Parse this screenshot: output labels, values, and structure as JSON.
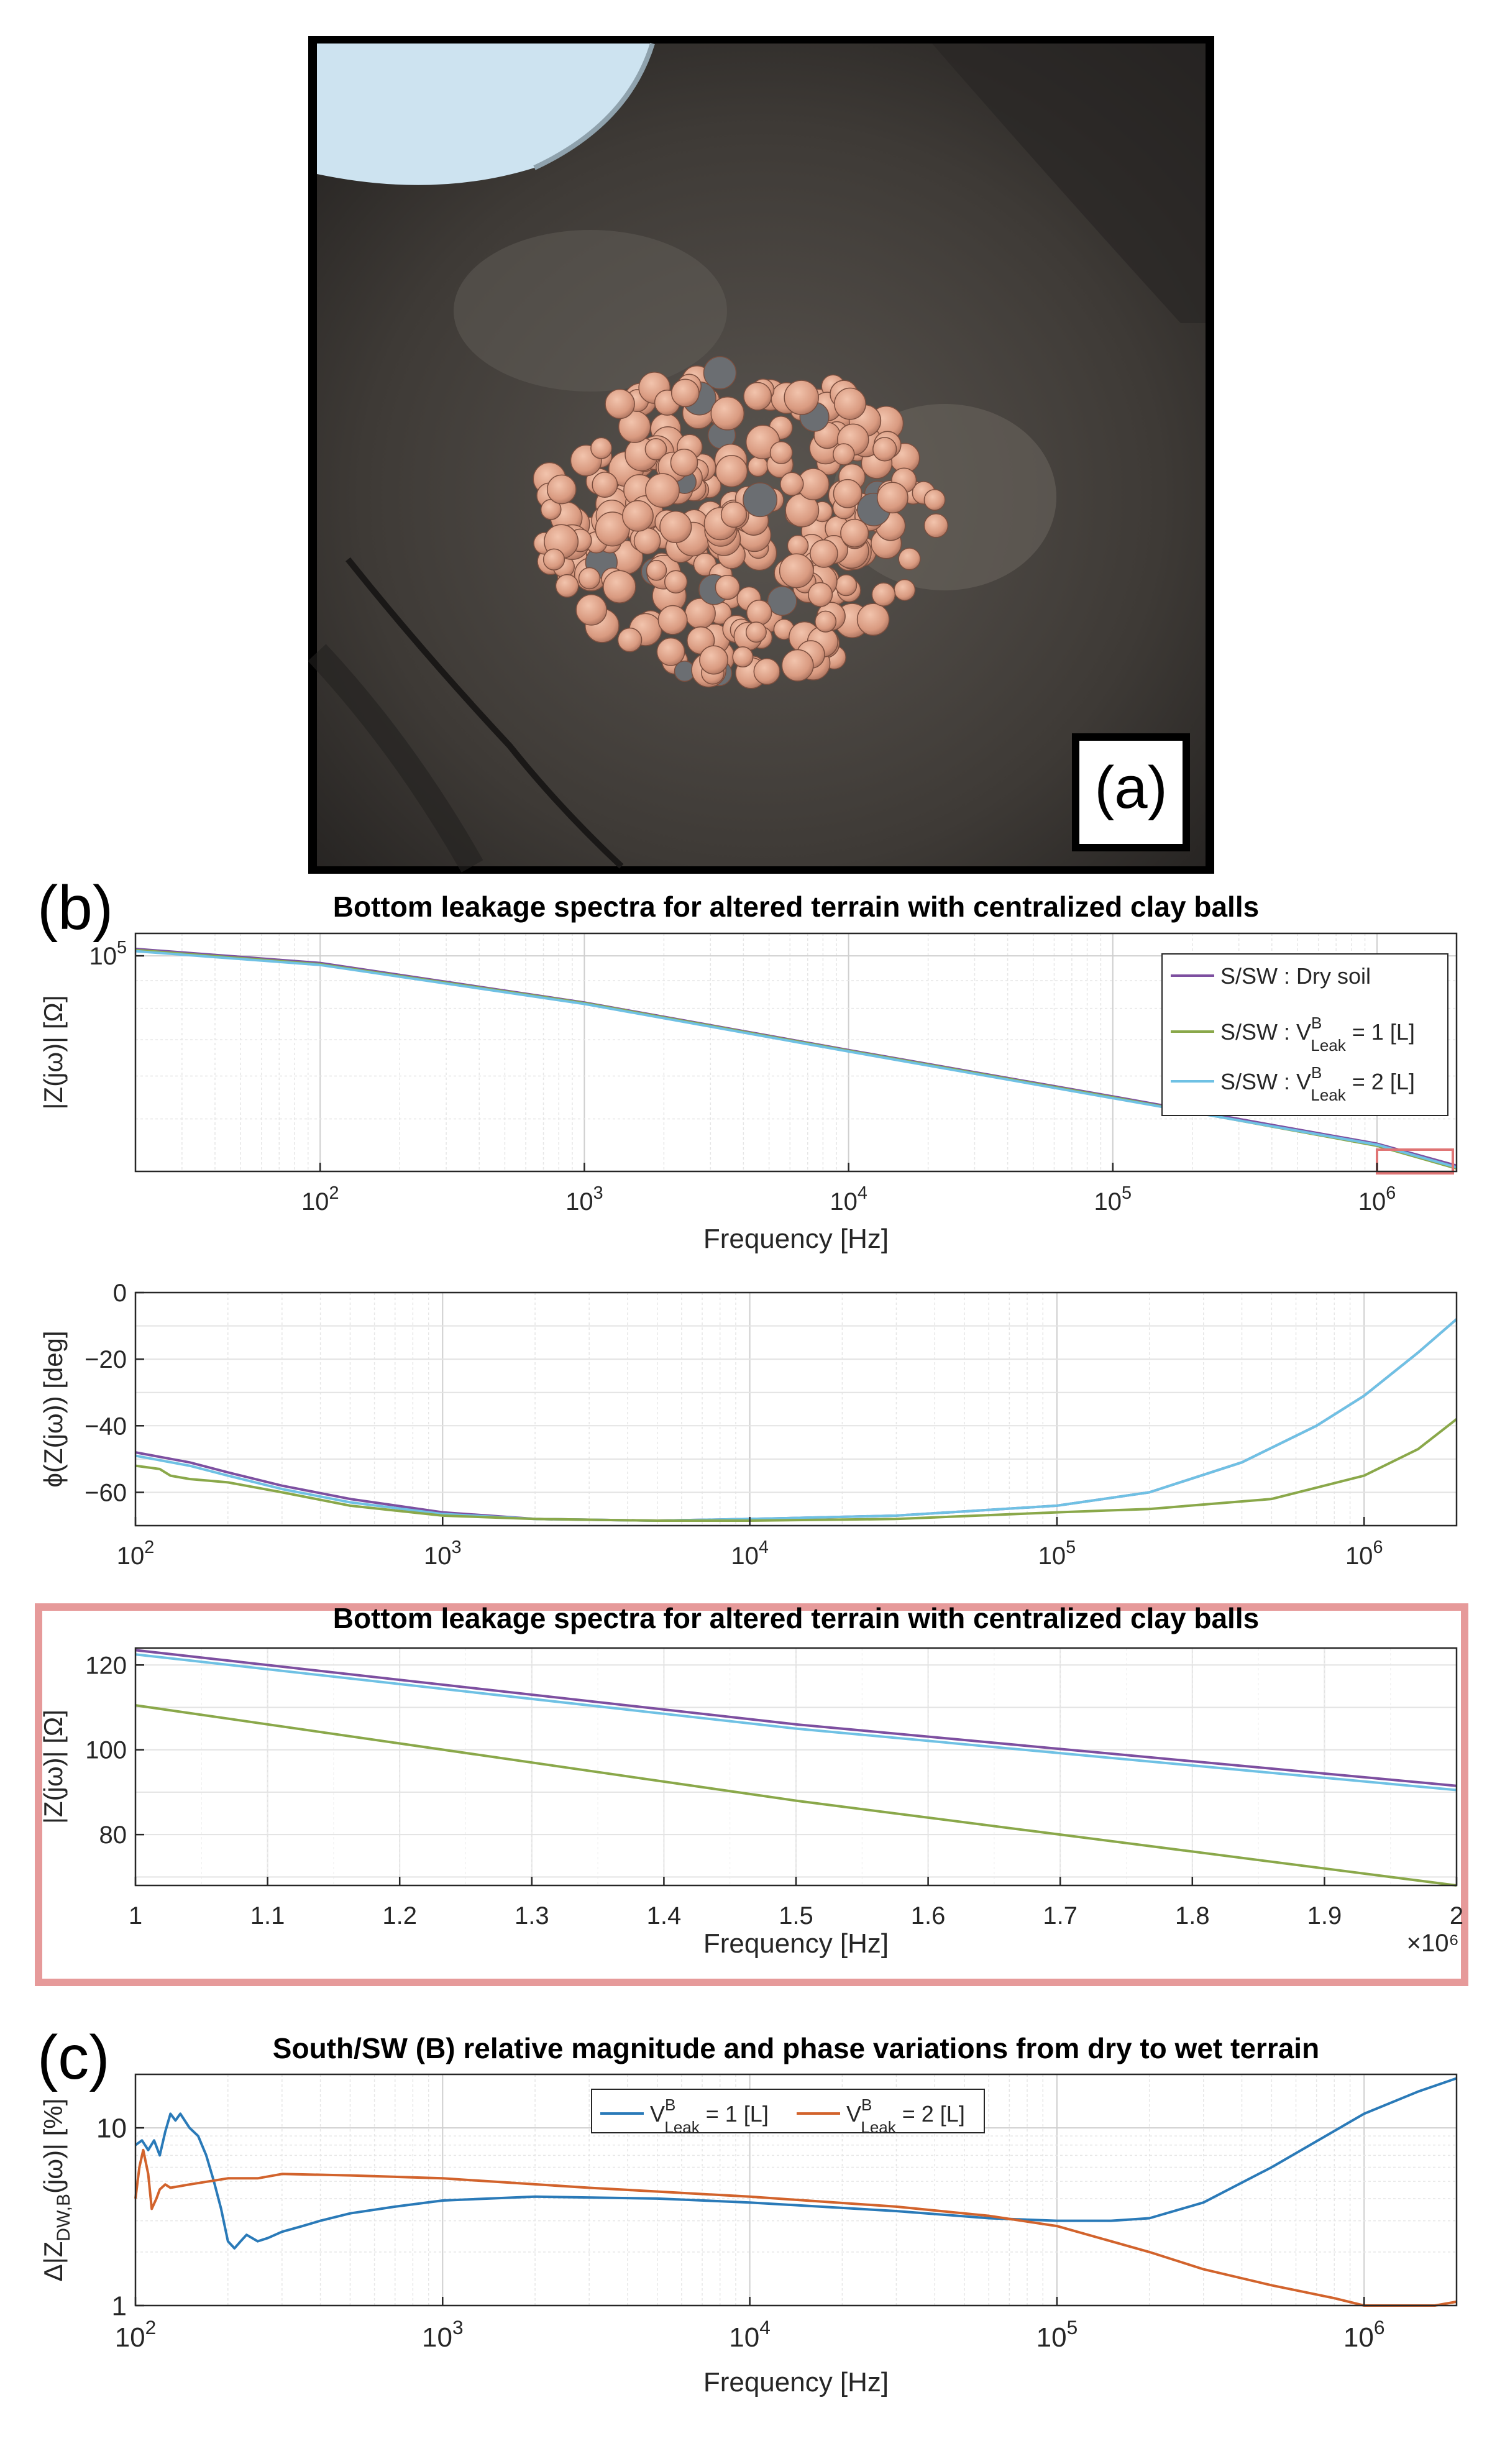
{
  "panel_labels": {
    "a": "(a)",
    "b": "(b)",
    "c": "(c)"
  },
  "photo": {
    "alt": "Cluster of orange clay balls in dark soil"
  },
  "chart_data": [
    {
      "id": "b1",
      "type": "line",
      "title": "Bottom leakage spectra for altered terrain with centralized clay balls",
      "xlabel": "Frequency [Hz]",
      "ylabel": "|Z(jω)| [Ω]",
      "xscale": "log",
      "yscale": "log",
      "xlim": [
        20,
        2000000
      ],
      "ylim": [
        40000,
        110000
      ],
      "x_ticks": [
        100,
        1000,
        10000,
        100000,
        1000000
      ],
      "x_tick_labels": [
        [
          "10",
          "2"
        ],
        [
          "10",
          "3"
        ],
        [
          "10",
          "4"
        ],
        [
          "10",
          "5"
        ],
        [
          "10",
          "6"
        ]
      ],
      "y_ticks": [
        100000
      ],
      "y_tick_labels": [
        [
          "10",
          "5"
        ]
      ],
      "grid": true,
      "legend_position": "top-right",
      "legend": [
        {
          "main": "S/SW : Dry soil",
          "color": "#7d4fa0"
        },
        {
          "pre": "S/SW : V",
          "sup": "B",
          "sub": "Leak",
          "post": " = 1 [L]",
          "color": "#8aa84a"
        },
        {
          "pre": "S/SW : V",
          "sup": "B",
          "sub": "Leak",
          "post": " = 2 [L]",
          "color": "#6fc1e4"
        }
      ],
      "highlight_box": {
        "x": [
          1000000,
          2000000
        ],
        "color": "#e07575"
      },
      "series": [
        {
          "color": "#7d4fa0",
          "x": [
            20,
            100,
            1000,
            10000,
            100000,
            1000000,
            2000000
          ],
          "y": [
            103000,
            97000,
            82000,
            67000,
            55000,
            45000,
            41000
          ]
        },
        {
          "color": "#8aa84a",
          "x": [
            20,
            100,
            1000,
            10000,
            100000,
            1000000,
            2000000
          ],
          "y": [
            102500,
            96500,
            81800,
            66800,
            54800,
            44600,
            40500
          ]
        },
        {
          "color": "#6fc1e4",
          "x": [
            20,
            100,
            1000,
            10000,
            100000,
            1000000,
            2000000
          ],
          "y": [
            102000,
            96200,
            81500,
            66600,
            54600,
            44800,
            40700
          ]
        }
      ]
    },
    {
      "id": "b2",
      "type": "line",
      "xlabel": "",
      "ylabel": "ϕ(Z(jω)) [deg]",
      "xscale": "log",
      "xlim": [
        100,
        2000000
      ],
      "ylim": [
        -70,
        0
      ],
      "x_ticks": [
        100,
        1000,
        10000,
        100000,
        1000000
      ],
      "x_tick_labels": [
        [
          "10",
          "2"
        ],
        [
          "10",
          "3"
        ],
        [
          "10",
          "4"
        ],
        [
          "10",
          "5"
        ],
        [
          "10",
          "6"
        ]
      ],
      "y_ticks": [
        0,
        -20,
        -40,
        -60
      ],
      "y_tick_labels": [
        "0",
        "−20",
        "−40",
        "−60"
      ],
      "grid": true,
      "series": [
        {
          "color": "#7d4fa0",
          "x": [
            100,
            150,
            200,
            300,
            500,
            1000,
            2000,
            5000,
            10000,
            30000,
            100000,
            200000,
            400000,
            700000,
            1000000,
            1500000,
            2000000
          ],
          "y": [
            -48,
            -51,
            -54,
            -58,
            -62,
            -66,
            -68,
            -68.5,
            -68,
            -67,
            -64,
            -60,
            -51,
            -40,
            -31,
            -18,
            -8
          ]
        },
        {
          "color": "#6fc1e4",
          "x": [
            100,
            150,
            200,
            300,
            500,
            1000,
            2000,
            5000,
            10000,
            30000,
            100000,
            200000,
            400000,
            700000,
            1000000,
            1500000,
            2000000
          ],
          "y": [
            -49,
            -52,
            -55,
            -59,
            -63,
            -66.5,
            -68,
            -68.5,
            -68,
            -67,
            -64,
            -60,
            -51,
            -40,
            -31,
            -18,
            -8
          ]
        },
        {
          "color": "#8aa84a",
          "x": [
            100,
            120,
            130,
            150,
            200,
            300,
            500,
            1000,
            2000,
            5000,
            10000,
            30000,
            100000,
            200000,
            500000,
            1000000,
            1500000,
            2000000
          ],
          "y": [
            -52,
            -53,
            -55,
            -56,
            -57,
            -60,
            -64,
            -67,
            -68,
            -68.5,
            -68.5,
            -68,
            -66,
            -65,
            -62,
            -55,
            -47,
            -38
          ]
        }
      ]
    },
    {
      "id": "b3",
      "type": "line",
      "title": "Bottom leakage spectra for altered terrain with centralized clay balls",
      "xlabel": "Frequency [Hz]",
      "ylabel": "|Z(jω)| [Ω]",
      "x_multiplier": "×10⁶",
      "xlim": [
        1,
        2
      ],
      "ylim": [
        68,
        124
      ],
      "x_ticks": [
        1,
        1.1,
        1.2,
        1.3,
        1.4,
        1.5,
        1.6,
        1.7,
        1.8,
        1.9,
        2
      ],
      "x_tick_labels": [
        "1",
        "1.1",
        "1.2",
        "1.3",
        "1.4",
        "1.5",
        "1.6",
        "1.7",
        "1.8",
        "1.9",
        "2"
      ],
      "y_ticks": [
        80,
        100,
        120
      ],
      "y_tick_labels": [
        "80",
        "100",
        "120"
      ],
      "grid": true,
      "series": [
        {
          "color": "#7d4fa0",
          "x": [
            1,
            1.5,
            2
          ],
          "y": [
            123.5,
            106,
            91.5
          ]
        },
        {
          "color": "#6fc1e4",
          "x": [
            1,
            1.5,
            2
          ],
          "y": [
            122.5,
            105,
            90.5
          ]
        },
        {
          "color": "#8aa84a",
          "x": [
            1,
            1.5,
            2
          ],
          "y": [
            110.5,
            88,
            68
          ]
        }
      ]
    },
    {
      "id": "c",
      "type": "line",
      "title": "South/SW (B) relative magnitude and phase variations from dry to wet terrain",
      "xlabel": "Frequency [Hz]",
      "ylabel": "Δ|Z_DW,B(jω)| [%]",
      "xscale": "log",
      "yscale": "log",
      "xlim": [
        100,
        2000000
      ],
      "ylim": [
        1,
        20
      ],
      "x_ticks": [
        100,
        1000,
        10000,
        100000,
        1000000
      ],
      "x_tick_labels": [
        [
          "10",
          "2"
        ],
        [
          "10",
          "3"
        ],
        [
          "10",
          "4"
        ],
        [
          "10",
          "5"
        ],
        [
          "10",
          "6"
        ]
      ],
      "y_ticks": [
        1,
        10
      ],
      "y_tick_labels": [
        "1",
        "10"
      ],
      "grid": true,
      "legend_position": "top-center",
      "legend": [
        {
          "pre": "V",
          "sup": "B",
          "sub": "Leak",
          "post": " = 1 [L]",
          "color": "#2a7ab8"
        },
        {
          "pre": "V",
          "sup": "B",
          "sub": "Leak",
          "post": " = 2 [L]",
          "color": "#d2632c"
        }
      ],
      "series": [
        {
          "name": "V Leak B = 1 [L]",
          "color": "#2a7ab8",
          "x": [
            100,
            105,
            110,
            115,
            120,
            125,
            130,
            135,
            140,
            150,
            160,
            170,
            180,
            190,
            200,
            210,
            220,
            230,
            250,
            270,
            300,
            350,
            400,
            500,
            700,
            1000,
            2000,
            5000,
            10000,
            30000,
            60000,
            100000,
            150000,
            200000,
            300000,
            500000,
            1000000,
            1500000,
            2000000
          ],
          "y": [
            8,
            8.5,
            7.5,
            8.5,
            7,
            9.5,
            12,
            11,
            12,
            10,
            9,
            7,
            5,
            3.5,
            2.3,
            2.1,
            2.3,
            2.5,
            2.3,
            2.4,
            2.6,
            2.8,
            3,
            3.3,
            3.6,
            3.9,
            4.1,
            4,
            3.8,
            3.4,
            3.1,
            3.0,
            3.0,
            3.1,
            3.8,
            6,
            12,
            16,
            19
          ]
        },
        {
          "name": "V Leak B = 2 [L]",
          "color": "#d2632c",
          "x": [
            100,
            103,
            106,
            110,
            113,
            117,
            120,
            125,
            130,
            150,
            200,
            250,
            300,
            500,
            1000,
            3000,
            10000,
            30000,
            60000,
            100000,
            200000,
            300000,
            500000,
            800000,
            1000000,
            1200000,
            1400000,
            1700000,
            2000000
          ],
          "y": [
            4,
            6,
            7.5,
            5.5,
            3.5,
            4,
            4.5,
            4.8,
            4.6,
            4.8,
            5.2,
            5.2,
            5.5,
            5.4,
            5.2,
            4.6,
            4.1,
            3.6,
            3.2,
            2.8,
            2.0,
            1.6,
            1.3,
            1.1,
            1.0,
            0.95,
            0.92,
            0.95,
            1.05
          ]
        }
      ]
    }
  ]
}
